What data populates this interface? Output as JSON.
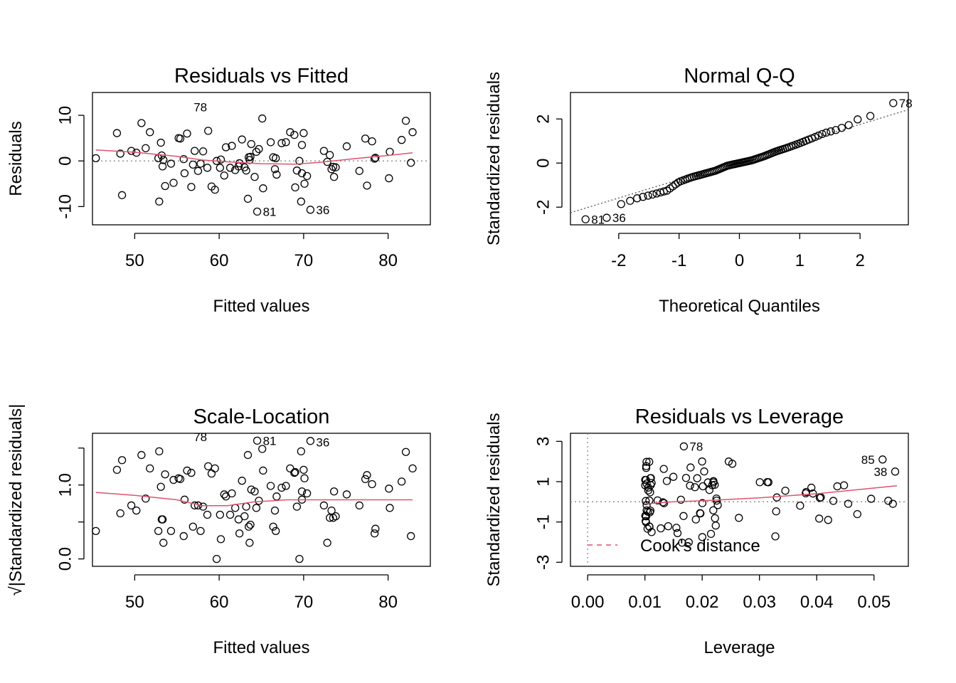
{
  "chart_data": [
    {
      "type": "scatter",
      "panel": "top-left",
      "title": "Residuals vs Fitted",
      "xlabel": "Fitted values",
      "ylabel": "Residuals",
      "xlim": [
        45,
        85
      ],
      "ylim": [
        -14,
        15
      ],
      "xticks": [
        50,
        60,
        70,
        80
      ],
      "yticks": [
        -10,
        0,
        10
      ],
      "xtick_labels": [
        "50",
        "60",
        "70",
        "80"
      ],
      "ytick_labels": [
        "-10",
        "0",
        "10"
      ],
      "reference_line_y": 0,
      "smooth_color": "#DF536B",
      "points": [
        [
          45.4,
          0.6
        ],
        [
          47.9,
          6.1
        ],
        [
          48.3,
          1.6
        ],
        [
          48.5,
          -7.5
        ],
        [
          49.6,
          2.2
        ],
        [
          50.2,
          1.8
        ],
        [
          50.8,
          8.3
        ],
        [
          51.3,
          2.8
        ],
        [
          51.8,
          6.3
        ],
        [
          52.8,
          0.6
        ],
        [
          52.9,
          -8.9
        ],
        [
          53.1,
          4.0
        ],
        [
          53.2,
          1.2
        ],
        [
          53.3,
          -1.2
        ],
        [
          53.4,
          0.2
        ],
        [
          53.6,
          -5.5
        ],
        [
          54.3,
          -0.6
        ],
        [
          54.6,
          -4.8
        ],
        [
          55.2,
          5.0
        ],
        [
          55.4,
          4.9
        ],
        [
          55.8,
          0.4
        ],
        [
          55.9,
          -2.7
        ],
        [
          56.2,
          6.0
        ],
        [
          56.7,
          -5.7
        ],
        [
          56.9,
          -0.8
        ],
        [
          57.1,
          2.2
        ],
        [
          57.5,
          -2.2
        ],
        [
          57.8,
          -0.6
        ],
        [
          58.1,
          2.1
        ],
        [
          58.6,
          -1.5
        ],
        [
          58.7,
          6.6
        ],
        [
          59.1,
          -5.6
        ],
        [
          59.5,
          -6.3
        ],
        [
          59.7,
          0.0
        ],
        [
          60.1,
          -1.5
        ],
        [
          60.2,
          0.3
        ],
        [
          60.6,
          -3.2
        ],
        [
          60.8,
          3.0
        ],
        [
          61.3,
          -1.5
        ],
        [
          61.5,
          3.3
        ],
        [
          61.9,
          -2.0
        ],
        [
          62.3,
          -1.2
        ],
        [
          62.4,
          -0.5
        ],
        [
          62.7,
          4.7
        ],
        [
          63.0,
          -1.4
        ],
        [
          63.2,
          -2.1
        ],
        [
          63.4,
          -8.3
        ],
        [
          63.5,
          0.8
        ],
        [
          63.6,
          0.2
        ],
        [
          63.7,
          0.9
        ],
        [
          63.8,
          3.7
        ],
        [
          64.2,
          -3.5
        ],
        [
          64.4,
          2.0
        ],
        [
          64.5,
          -11.1
        ],
        [
          64.7,
          2.6
        ],
        [
          65.1,
          9.3
        ],
        [
          65.2,
          -6.0
        ],
        [
          66.1,
          4.1
        ],
        [
          66.4,
          0.8
        ],
        [
          66.6,
          -1.8
        ],
        [
          66.7,
          0.6
        ],
        [
          66.8,
          -3.0
        ],
        [
          67.4,
          3.9
        ],
        [
          67.9,
          4.1
        ],
        [
          68.4,
          6.3
        ],
        [
          68.9,
          5.7
        ],
        [
          69.0,
          -5.8
        ],
        [
          69.2,
          -2.1
        ],
        [
          69.5,
          0.0
        ],
        [
          69.7,
          -8.9
        ],
        [
          69.8,
          3.5
        ],
        [
          69.8,
          -2.7
        ],
        [
          70.0,
          6.1
        ],
        [
          70.1,
          -5.0
        ],
        [
          70.4,
          -3.3
        ],
        [
          70.8,
          -10.7
        ],
        [
          72.4,
          2.2
        ],
        [
          72.8,
          -0.2
        ],
        [
          73.1,
          1.3
        ],
        [
          73.3,
          -1.8
        ],
        [
          73.5,
          -1.3
        ],
        [
          73.6,
          -3.5
        ],
        [
          73.8,
          -1.4
        ],
        [
          75.1,
          3.2
        ],
        [
          76.6,
          -2.2
        ],
        [
          77.3,
          4.9
        ],
        [
          77.5,
          -5.4
        ],
        [
          78.1,
          4.3
        ],
        [
          78.4,
          0.5
        ],
        [
          78.5,
          0.7
        ],
        [
          80.1,
          -3.8
        ],
        [
          80.2,
          2.0
        ],
        [
          81.6,
          4.6
        ],
        [
          82.1,
          8.8
        ],
        [
          82.7,
          -0.4
        ],
        [
          82.9,
          6.3
        ]
      ],
      "labeled_points": [
        {
          "label": "78",
          "x": 56.3,
          "y": 11.8
        },
        {
          "label": "81",
          "x": 64.5,
          "y": -11.1
        },
        {
          "label": "36",
          "x": 70.8,
          "y": -10.7
        }
      ],
      "smooth": [
        [
          45.4,
          2.4
        ],
        [
          50,
          1.9
        ],
        [
          55,
          1.0
        ],
        [
          58,
          0.2
        ],
        [
          61,
          -0.2
        ],
        [
          65,
          -0.6
        ],
        [
          69,
          -0.7
        ],
        [
          72,
          -0.3
        ],
        [
          76,
          0.5
        ],
        [
          80,
          1.2
        ],
        [
          82.9,
          1.8
        ]
      ]
    },
    {
      "type": "scatter",
      "panel": "top-right",
      "title": "Normal Q-Q",
      "xlabel": "Theoretical Quantiles",
      "ylabel": "Standardized residuals",
      "xlim": [
        -2.8,
        2.8
      ],
      "ylim": [
        -2.8,
        3.2
      ],
      "xticks": [
        -2,
        -1,
        0,
        1,
        2
      ],
      "yticks": [
        -2,
        0,
        2
      ],
      "xtick_labels": [
        "-2",
        "-1",
        "0",
        "1",
        "2"
      ],
      "ytick_labels": [
        "-2",
        "0",
        "2"
      ],
      "reference_line": [
        [
          -2.8,
          -2.25
        ],
        [
          2.8,
          2.42
        ]
      ],
      "n_points": 100,
      "qq_sample_quantiles": [
        [
          -2.3,
          -2.2
        ],
        [
          -1.7,
          -1.6
        ],
        [
          -1.4,
          -1.4
        ],
        [
          -1.2,
          -1.25
        ],
        [
          -1.0,
          -0.85
        ],
        [
          -0.8,
          -0.65
        ],
        [
          -0.6,
          -0.5
        ],
        [
          -0.4,
          -0.35
        ],
        [
          -0.2,
          -0.12
        ],
        [
          0.0,
          0.0
        ],
        [
          0.2,
          0.12
        ],
        [
          0.4,
          0.3
        ],
        [
          0.6,
          0.52
        ],
        [
          0.8,
          0.7
        ],
        [
          1.0,
          0.9
        ],
        [
          1.2,
          1.12
        ],
        [
          1.4,
          1.35
        ],
        [
          1.6,
          1.5
        ],
        [
          1.8,
          1.7
        ],
        [
          2.0,
          2.05
        ],
        [
          2.2,
          2.15
        ]
      ],
      "labeled_points": [
        {
          "label": "78",
          "x": 2.55,
          "y": 2.72
        },
        {
          "label": "81",
          "x": -2.55,
          "y": -2.55
        },
        {
          "label": "36",
          "x": -2.2,
          "y": -2.48
        }
      ]
    },
    {
      "type": "scatter",
      "panel": "bottom-left",
      "title": "Scale-Location",
      "xlabel": "Fitted values",
      "ylabel": "√|Standardized residuals|",
      "xlim": [
        45,
        85
      ],
      "ylim": [
        -0.1,
        1.7
      ],
      "xticks": [
        50,
        60,
        70,
        80
      ],
      "yticks": [
        0.0,
        0.5,
        1.0,
        1.5
      ],
      "xtick_labels": [
        "50",
        "60",
        "70",
        "80"
      ],
      "ytick_labels": [
        "0.0",
        "",
        "1.0",
        ""
      ],
      "smooth_color": "#DF536B",
      "smooth": [
        [
          45.4,
          0.9
        ],
        [
          50,
          0.86
        ],
        [
          55,
          0.8
        ],
        [
          58,
          0.72
        ],
        [
          61,
          0.72
        ],
        [
          64,
          0.77
        ],
        [
          68,
          0.8
        ],
        [
          72,
          0.8
        ],
        [
          76,
          0.8
        ],
        [
          80,
          0.8
        ],
        [
          82.9,
          0.8
        ]
      ],
      "labeled_points": [
        {
          "label": "78",
          "x": 56.3,
          "y": 1.65
        },
        {
          "label": "81",
          "x": 64.5,
          "y": 1.6
        },
        {
          "label": "36",
          "x": 70.8,
          "y": 1.58
        }
      ]
    },
    {
      "type": "scatter",
      "panel": "bottom-right",
      "title": "Residuals vs Leverage",
      "xlabel": "Leverage",
      "ylabel": "Standardized residuals",
      "xlim": [
        -0.003,
        0.056
      ],
      "ylim": [
        -3.2,
        3.4
      ],
      "xticks": [
        0.0,
        0.01,
        0.02,
        0.03,
        0.04,
        0.05
      ],
      "yticks": [
        -3,
        -1,
        1,
        3
      ],
      "xtick_labels": [
        "0.00",
        "0.01",
        "0.02",
        "0.03",
        "0.04",
        "0.05"
      ],
      "ytick_labels": [
        "-3",
        "-1",
        "1",
        "3"
      ],
      "legend": {
        "label": "Cook's distance",
        "position": "bottom-left",
        "line_color": "#DF536B",
        "line_style": "dashed"
      },
      "smooth_color": "#DF536B",
      "smooth": [
        [
          0.01,
          -0.1
        ],
        [
          0.015,
          0.0
        ],
        [
          0.02,
          0.05
        ],
        [
          0.03,
          0.2
        ],
        [
          0.04,
          0.4
        ],
        [
          0.054,
          0.8
        ]
      ],
      "labeled_points": [
        {
          "label": "78",
          "x": 0.0168,
          "y": 2.75
        },
        {
          "label": "85",
          "x": 0.0515,
          "y": 2.1
        },
        {
          "label": "38",
          "x": 0.0537,
          "y": 1.5
        }
      ]
    }
  ]
}
